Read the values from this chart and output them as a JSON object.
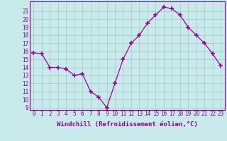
{
  "x": [
    0,
    1,
    2,
    3,
    4,
    5,
    6,
    7,
    8,
    9,
    10,
    11,
    12,
    13,
    14,
    15,
    16,
    17,
    18,
    19,
    20,
    21,
    22,
    23
  ],
  "y": [
    15.8,
    15.7,
    14.0,
    14.0,
    13.8,
    13.0,
    13.2,
    11.0,
    10.3,
    9.0,
    12.0,
    15.0,
    17.0,
    18.0,
    19.5,
    20.5,
    21.5,
    21.3,
    20.5,
    19.0,
    18.0,
    17.0,
    15.7,
    14.2
  ],
  "line_color": "#990099",
  "marker": "+",
  "marker_size": 4,
  "xlabel": "Windchill (Refroidissement éolien,°C)",
  "xlim_min": -0.5,
  "xlim_max": 23.5,
  "ylim_min": 8.7,
  "ylim_max": 22.2,
  "yticks": [
    9,
    10,
    11,
    12,
    13,
    14,
    15,
    16,
    17,
    18,
    19,
    20,
    21
  ],
  "xticks": [
    0,
    1,
    2,
    3,
    4,
    5,
    6,
    7,
    8,
    9,
    10,
    11,
    12,
    13,
    14,
    15,
    16,
    17,
    18,
    19,
    20,
    21,
    22,
    23
  ],
  "bg_color": "#c8eaea",
  "grid_color": "#aacccc",
  "tick_color": "#880088",
  "label_color": "#880088",
  "tick_fontsize": 5.5,
  "xlabel_fontsize": 6.5
}
